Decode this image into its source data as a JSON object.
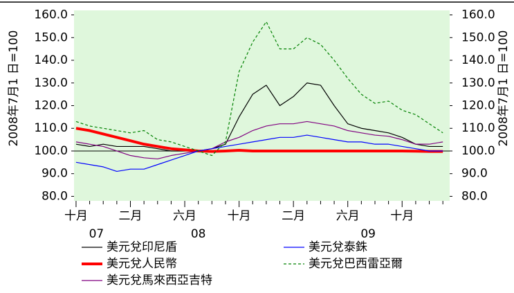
{
  "chart_data": {
    "type": "line",
    "y_axis_title": "2008年7月1 日=100",
    "x": [
      0,
      1,
      2,
      3,
      4,
      5,
      6,
      7,
      8,
      9,
      10,
      11,
      12,
      13,
      14,
      15,
      16,
      17,
      18,
      19,
      20,
      21,
      22,
      23,
      24,
      25,
      26,
      27
    ],
    "xlim": [
      -0.15,
      27.5
    ],
    "xticks": [
      {
        "value": 0,
        "label": "十月"
      },
      {
        "value": 4,
        "label": "二月"
      },
      {
        "value": 8,
        "label": "六月"
      },
      {
        "value": 12,
        "label": "十月"
      },
      {
        "value": 16,
        "label": "二月"
      },
      {
        "value": 20,
        "label": "六月"
      },
      {
        "value": 24,
        "label": "十月"
      }
    ],
    "xminorticks": [
      1,
      2,
      3,
      5,
      6,
      7,
      9,
      10,
      11,
      13,
      14,
      15,
      17,
      18,
      19,
      21,
      22,
      23,
      25,
      26,
      27
    ],
    "x_year_labels": [
      {
        "value": 1.5,
        "label": "07"
      },
      {
        "value": 9,
        "label": "08"
      },
      {
        "value": 21.5,
        "label": "09"
      }
    ],
    "ylim": [
      78,
      162
    ],
    "yticks": [
      {
        "value": 80,
        "label": "80.0"
      },
      {
        "value": 90,
        "label": "90.0"
      },
      {
        "value": 100,
        "label": "100.0"
      },
      {
        "value": 110,
        "label": "110.0"
      },
      {
        "value": 120,
        "label": "120.0"
      },
      {
        "value": 130,
        "label": "130.0"
      },
      {
        "value": 140,
        "label": "140.0"
      },
      {
        "value": 150,
        "label": "150.0"
      },
      {
        "value": 160,
        "label": "160.0"
      }
    ],
    "reference_line": 100,
    "plot_background": "#dff7dc",
    "series": [
      {
        "name": "美元兌印尼盾",
        "color": "#000000",
        "width": 1.2,
        "dash": false,
        "values": [
          103,
          102,
          103,
          102,
          102,
          102,
          101,
          100,
          100,
          100,
          101,
          103,
          115,
          125,
          129,
          120,
          124,
          130,
          129,
          120,
          112,
          110,
          109,
          108,
          106,
          103,
          102,
          102
        ]
      },
      {
        "name": "美元兌人民幣",
        "color": "#ff0000",
        "width": 4,
        "dash": false,
        "values": [
          110,
          109,
          107.5,
          106,
          104.5,
          103,
          102,
          101,
          100.5,
          100,
          99.8,
          100,
          100.3,
          100,
          100,
          100,
          100,
          100,
          100,
          100,
          100,
          100,
          100,
          100,
          100,
          99.9,
          99.8,
          99.8
        ]
      },
      {
        "name": "美元兌馬來西亞吉特",
        "color": "#800080",
        "width": 1.2,
        "dash": false,
        "values": [
          104,
          103,
          102,
          100,
          98,
          97,
          96.5,
          98,
          99,
          100,
          101,
          104,
          106,
          109,
          111,
          112,
          112,
          113,
          112,
          111,
          109,
          108,
          107,
          106.5,
          105,
          103,
          103,
          104
        ]
      },
      {
        "name": "美元兌泰銖",
        "color": "#0000ff",
        "width": 1.2,
        "dash": false,
        "values": [
          95,
          94,
          93,
          91,
          92,
          92,
          94,
          96,
          98,
          100,
          101,
          102,
          103,
          104,
          105,
          106,
          106,
          107,
          106,
          105,
          104,
          104,
          103,
          103,
          102,
          101,
          100,
          100
        ]
      },
      {
        "name": "美元兌巴西雷亞爾",
        "color": "#008000",
        "width": 1.2,
        "dash": true,
        "values": [
          113,
          111,
          110,
          109,
          108,
          109,
          105,
          104,
          102,
          100,
          98,
          104,
          135,
          148,
          157,
          145,
          145,
          150,
          147,
          140,
          132,
          125,
          121,
          122,
          118,
          116,
          112,
          108
        ]
      }
    ]
  }
}
